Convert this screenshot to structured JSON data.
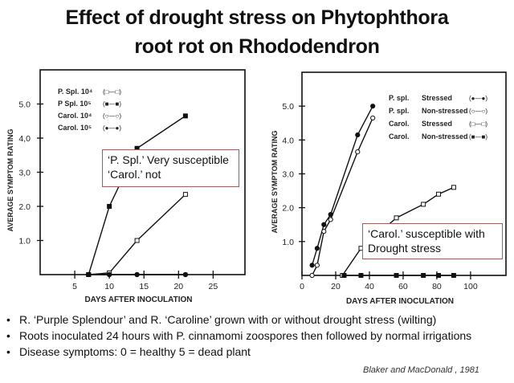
{
  "slide": {
    "title_line1": "Effect of drought stress on Phytophthora",
    "title_line2": "root rot on Rhododendron",
    "note_left": [
      "‘P. Spl.’ Very susceptible",
      "‘Carol.’ not"
    ],
    "note_right": [
      "‘Carol.’ susceptible with",
      "Drought stress"
    ],
    "bullets": [
      "R. ‘Purple Splendour’ and R. ‘Caroline’ grown with or without drought stress (wilting)",
      "Roots inoculated 24 hours with  P. cinnamomi zoospores  then followed by normal irrigations",
      "Disease symptoms:  0 = healthy  5 = dead plant"
    ],
    "citation": "Blaker and MacDonald , 1981"
  },
  "chart_data": [
    {
      "type": "line",
      "xlabel": "DAYS   AFTER  INOCULATION",
      "ylabel": "AVERAGE  SYMPTOM  RATING",
      "xlim": [
        0,
        29.6
      ],
      "ylim": [
        0,
        6
      ],
      "xticks": [
        5,
        10,
        15,
        20,
        25
      ],
      "xtick_labels": [
        "5",
        "10",
        "15",
        "20",
        "25"
      ],
      "yticks": [
        1,
        2,
        3,
        4,
        5
      ],
      "ytick_labels": [
        "1.0",
        "2.0",
        "3,0",
        "4,0",
        "5.0"
      ],
      "legend_position": "top-left",
      "series": [
        {
          "name": "P. Spl. 10⁴",
          "symbol": "(□—□)",
          "marker": "square-open",
          "x": [
            7,
            10,
            14,
            21
          ],
          "y": [
            0,
            0.05,
            1.0,
            2.35
          ]
        },
        {
          "name": "P Spl. 10⁵",
          "symbol": "(■—■)",
          "marker": "square-filled",
          "x": [
            7,
            10,
            14,
            21
          ],
          "y": [
            0,
            2.0,
            3.7,
            4.65
          ]
        },
        {
          "name": "Carol. 10⁴",
          "symbol": "(○—○)",
          "marker": "circle-open",
          "x": [
            7,
            10,
            14,
            21
          ],
          "y": [
            0,
            0,
            0,
            0
          ]
        },
        {
          "name": "Carol. 10⁵",
          "symbol": "(●—●)",
          "marker": "circle-filled",
          "x": [
            7,
            10,
            14,
            21
          ],
          "y": [
            0,
            0,
            0,
            0
          ]
        }
      ]
    },
    {
      "type": "line",
      "xlabel": "DAYS   AFTER   INOCULATION",
      "ylabel": "AVERAGE  SYMPTOM  RATING",
      "xlim": [
        0,
        121
      ],
      "ylim": [
        0,
        6
      ],
      "xticks": [
        0,
        20,
        40,
        60,
        80,
        100
      ],
      "xtick_labels": [
        "0",
        "20",
        "40",
        "60",
        "80",
        "100"
      ],
      "yticks": [
        1,
        2,
        3,
        4,
        5
      ],
      "ytick_labels": [
        "1.0",
        "2.0",
        "3.0",
        "4.0",
        "5.0"
      ],
      "legend_position": "top-right",
      "series": [
        {
          "name": "P. spl.",
          "condition": "Stressed",
          "symbol": "(●—●)",
          "marker": "circle-filled",
          "x": [
            6,
            9,
            13,
            17,
            33,
            42
          ],
          "y": [
            0.3,
            0.8,
            1.5,
            1.8,
            4.15,
            5.0
          ]
        },
        {
          "name": "P. spl.",
          "condition": "Non-stressed",
          "symbol": "(○—○)",
          "marker": "circle-open",
          "x": [
            6,
            9,
            13,
            17,
            33,
            42
          ],
          "y": [
            0,
            0.3,
            1.3,
            1.65,
            3.65,
            4.65
          ]
        },
        {
          "name": "Carol.",
          "condition": "Stressed",
          "symbol": "(□—□)",
          "marker": "square-open",
          "x": [
            24,
            35,
            56,
            72,
            81,
            90
          ],
          "y": [
            0,
            0.8,
            1.7,
            2.1,
            2.4,
            2.6
          ]
        },
        {
          "name": "Carol.",
          "condition": "Non-stressed",
          "symbol": "(■—■)",
          "marker": "square-filled",
          "x": [
            25,
            35,
            56,
            72,
            81,
            90
          ],
          "y": [
            0,
            0,
            0,
            0,
            0,
            0
          ]
        }
      ]
    }
  ]
}
